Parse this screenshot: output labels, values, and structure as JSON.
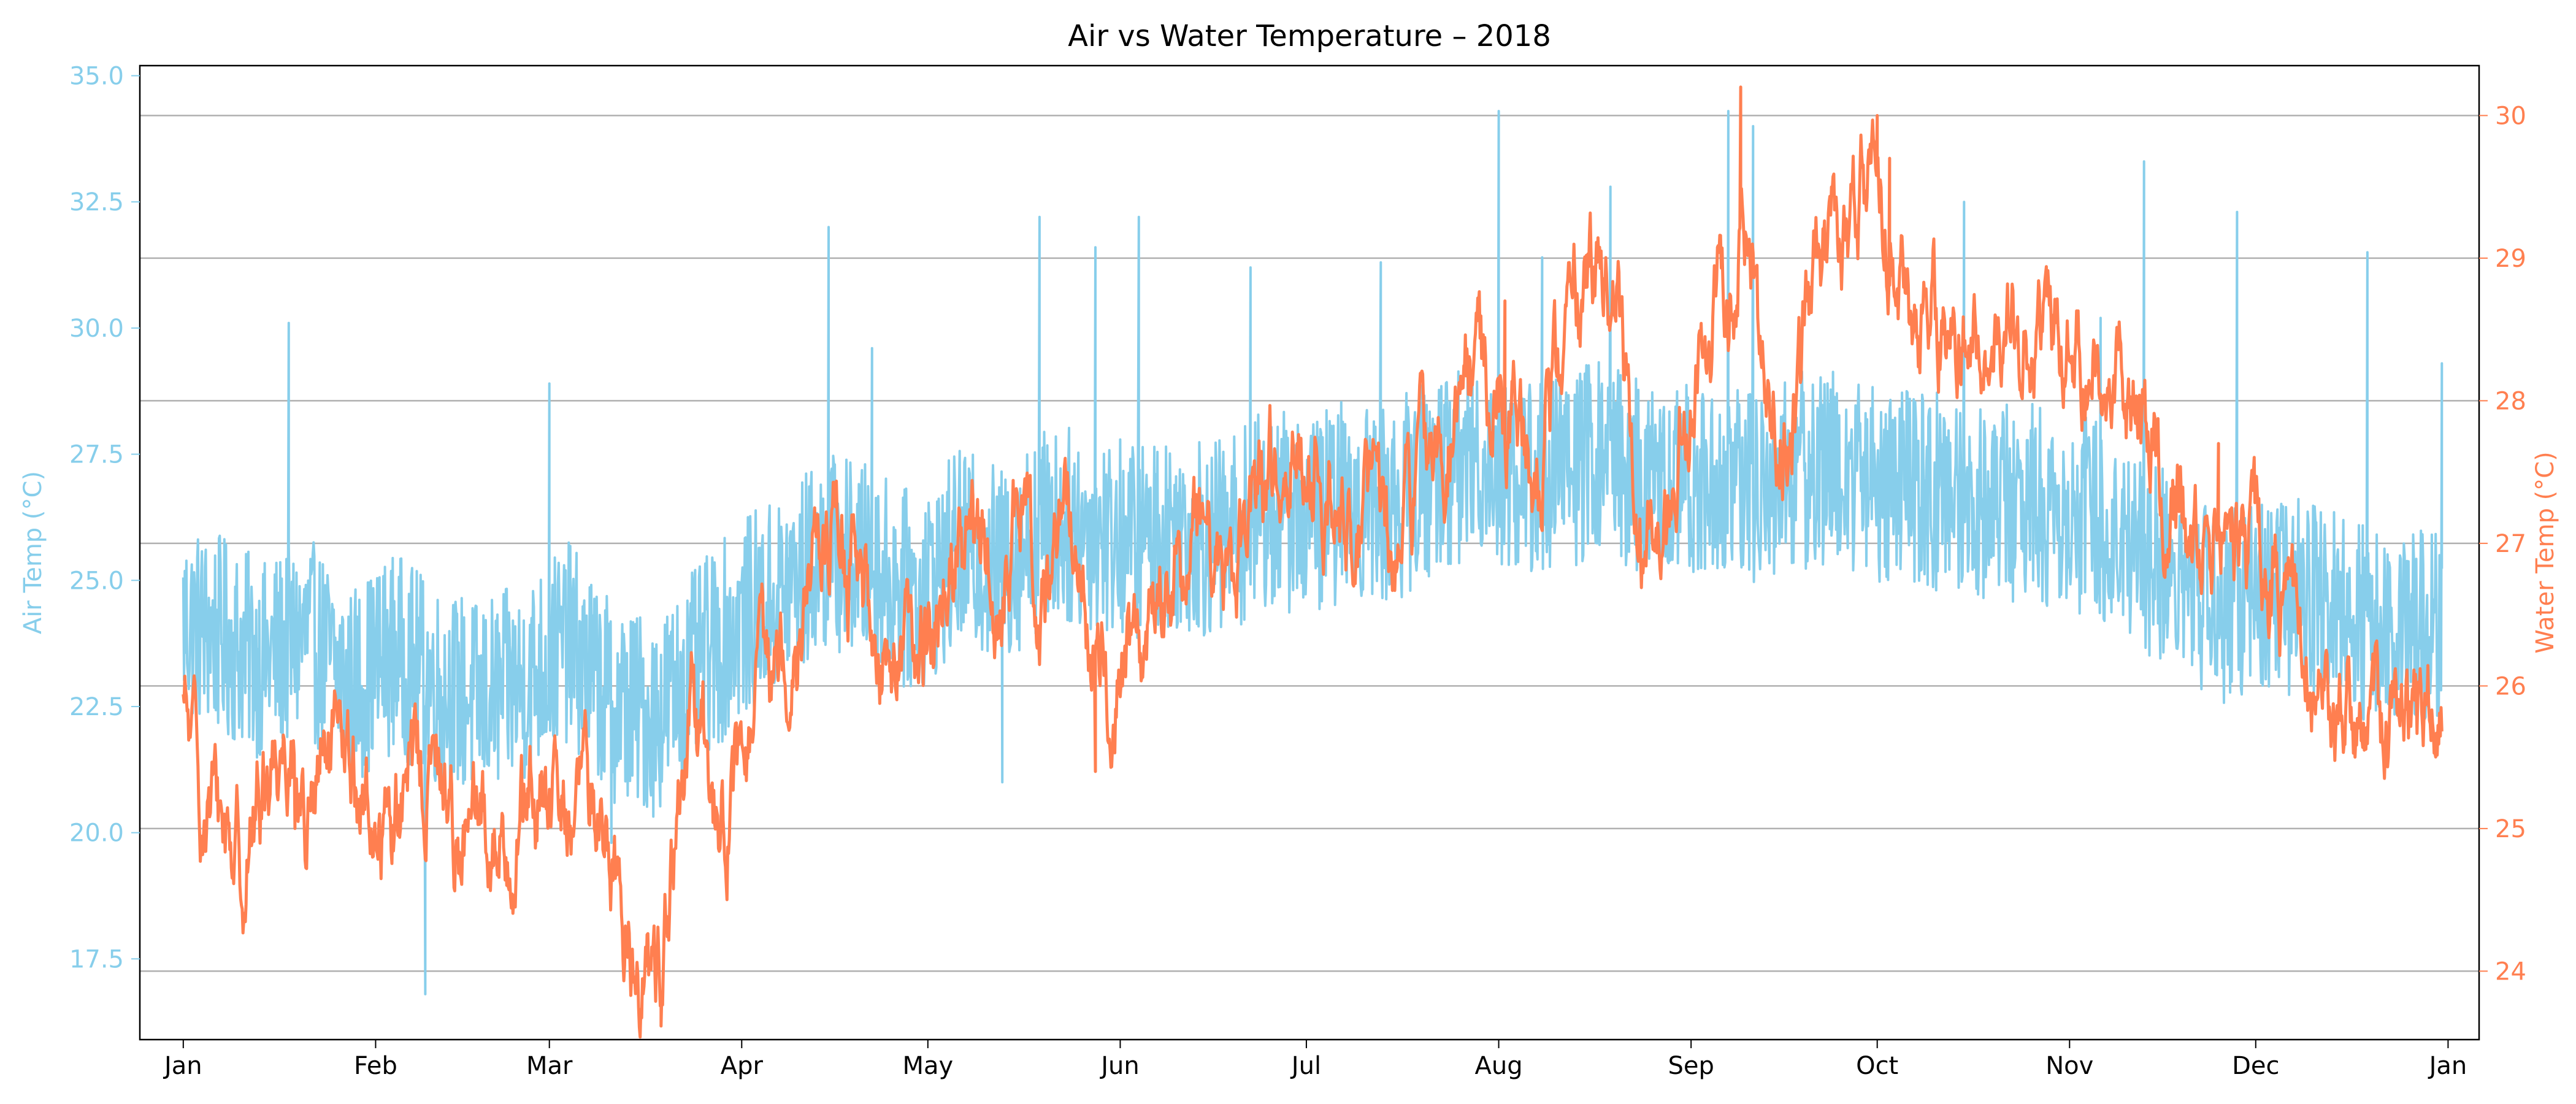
{
  "chart_data": {
    "type": "line",
    "title": "Air vs Water Temperature – 2018",
    "xlabel": "",
    "x_axis": {
      "kind": "date",
      "range": [
        "2017-12-25",
        "2019-01-06"
      ],
      "ticks": [
        {
          "date": "2018-01-01",
          "label": "Jan"
        },
        {
          "date": "2018-02-01",
          "label": "Feb"
        },
        {
          "date": "2018-03-01",
          "label": "Mar"
        },
        {
          "date": "2018-04-01",
          "label": "Apr"
        },
        {
          "date": "2018-05-01",
          "label": "May"
        },
        {
          "date": "2018-06-01",
          "label": "Jun"
        },
        {
          "date": "2018-07-01",
          "label": "Jul"
        },
        {
          "date": "2018-08-01",
          "label": "Aug"
        },
        {
          "date": "2018-09-01",
          "label": "Sep"
        },
        {
          "date": "2018-10-01",
          "label": "Oct"
        },
        {
          "date": "2018-11-01",
          "label": "Nov"
        },
        {
          "date": "2018-12-01",
          "label": "Dec"
        },
        {
          "date": "2019-01-01",
          "label": "Jan"
        }
      ]
    },
    "y_left": {
      "label": "Air Temp (°C)",
      "color": "#87ceeb",
      "range": [
        15.9,
        35.2
      ],
      "ticks": [
        17.5,
        20.0,
        22.5,
        25.0,
        27.5,
        30.0,
        32.5,
        35.0
      ],
      "tick_labels": [
        "17.5",
        "20.0",
        "22.5",
        "25.0",
        "27.5",
        "30.0",
        "32.5",
        "35.0"
      ]
    },
    "y_right": {
      "label": "Water Temp (°C)",
      "color": "#ff7f50",
      "range": [
        23.52,
        30.35
      ],
      "ticks": [
        24,
        25,
        26,
        27,
        28,
        29,
        30
      ],
      "tick_labels": [
        "24",
        "25",
        "26",
        "27",
        "28",
        "29",
        "30"
      ],
      "grid": true
    },
    "series": [
      {
        "axis": "left",
        "color": "#87ceeb",
        "noise_amplitude": 2.0,
        "points": [
          [
            "2018-01-01",
            24.2
          ],
          [
            "2018-01-07",
            23.9
          ],
          [
            "2018-01-14",
            23.4
          ],
          [
            "2018-01-21",
            23.9
          ],
          [
            "2018-01-28",
            22.9
          ],
          [
            "2018-02-04",
            23.6
          ],
          [
            "2018-02-11",
            22.9
          ],
          [
            "2018-02-18",
            22.6
          ],
          [
            "2018-02-25",
            23.0
          ],
          [
            "2018-03-04",
            23.8
          ],
          [
            "2018-03-11",
            22.6
          ],
          [
            "2018-03-18",
            22.3
          ],
          [
            "2018-03-25",
            23.3
          ],
          [
            "2018-04-01",
            24.2
          ],
          [
            "2018-04-08",
            24.8
          ],
          [
            "2018-04-15",
            25.6
          ],
          [
            "2018-04-22",
            25.3
          ],
          [
            "2018-04-29",
            24.7
          ],
          [
            "2018-05-06",
            25.6
          ],
          [
            "2018-05-13",
            25.3
          ],
          [
            "2018-05-20",
            26.1
          ],
          [
            "2018-05-27",
            26.0
          ],
          [
            "2018-06-03",
            25.8
          ],
          [
            "2018-06-10",
            26.0
          ],
          [
            "2018-06-17",
            25.8
          ],
          [
            "2018-06-24",
            26.4
          ],
          [
            "2018-07-01",
            26.3
          ],
          [
            "2018-07-08",
            26.6
          ],
          [
            "2018-07-15",
            26.5
          ],
          [
            "2018-07-22",
            27.2
          ],
          [
            "2018-07-29",
            27.4
          ],
          [
            "2018-08-05",
            27.0
          ],
          [
            "2018-08-12",
            27.2
          ],
          [
            "2018-08-19",
            27.5
          ],
          [
            "2018-08-26",
            26.8
          ],
          [
            "2018-09-02",
            27.0
          ],
          [
            "2018-09-09",
            26.8
          ],
          [
            "2018-09-16",
            27.1
          ],
          [
            "2018-09-23",
            27.3
          ],
          [
            "2018-09-30",
            27.0
          ],
          [
            "2018-10-07",
            26.8
          ],
          [
            "2018-10-14",
            26.7
          ],
          [
            "2018-10-21",
            26.6
          ],
          [
            "2018-10-28",
            26.5
          ],
          [
            "2018-11-04",
            26.3
          ],
          [
            "2018-11-11",
            25.8
          ],
          [
            "2018-11-18",
            25.1
          ],
          [
            "2018-11-25",
            24.5
          ],
          [
            "2018-12-02",
            24.7
          ],
          [
            "2018-12-09",
            24.6
          ],
          [
            "2018-12-16",
            24.3
          ],
          [
            "2018-12-23",
            24.1
          ],
          [
            "2018-12-31",
            24.3
          ]
        ],
        "spikes": [
          [
            "2018-01-18",
            30.1
          ],
          [
            "2018-02-09",
            16.8
          ],
          [
            "2018-03-01",
            28.9
          ],
          [
            "2018-03-11",
            19.8
          ],
          [
            "2018-04-15",
            32.0
          ],
          [
            "2018-04-22",
            29.6
          ],
          [
            "2018-05-13",
            21.0
          ],
          [
            "2018-05-19",
            32.2
          ],
          [
            "2018-05-28",
            31.6
          ],
          [
            "2018-06-04",
            32.2
          ],
          [
            "2018-06-22",
            31.2
          ],
          [
            "2018-07-13",
            31.3
          ],
          [
            "2018-08-01",
            34.3
          ],
          [
            "2018-08-08",
            31.4
          ],
          [
            "2018-08-19",
            32.8
          ],
          [
            "2018-09-07",
            34.3
          ],
          [
            "2018-09-11",
            34.0
          ],
          [
            "2018-10-15",
            32.5
          ],
          [
            "2018-11-06",
            30.2
          ],
          [
            "2018-11-13",
            33.3
          ],
          [
            "2018-11-28",
            32.3
          ],
          [
            "2018-12-19",
            31.5
          ],
          [
            "2018-12-31",
            29.3
          ]
        ]
      },
      {
        "axis": "right",
        "color": "#ff7f50",
        "noise_amplitude": 0.25,
        "points": [
          [
            "2018-01-01",
            25.8
          ],
          [
            "2018-01-04",
            25.2
          ],
          [
            "2018-01-08",
            25.0
          ],
          [
            "2018-01-11",
            24.8
          ],
          [
            "2018-01-15",
            25.5
          ],
          [
            "2018-01-18",
            25.7
          ],
          [
            "2018-01-21",
            25.0
          ],
          [
            "2018-01-24",
            25.4
          ],
          [
            "2018-01-28",
            25.4
          ],
          [
            "2018-02-01",
            25.0
          ],
          [
            "2018-02-04",
            25.1
          ],
          [
            "2018-02-08",
            25.4
          ],
          [
            "2018-02-11",
            25.4
          ],
          [
            "2018-02-15",
            24.9
          ],
          [
            "2018-02-18",
            25.0
          ],
          [
            "2018-02-22",
            24.9
          ],
          [
            "2018-02-25",
            25.2
          ],
          [
            "2018-03-01",
            25.1
          ],
          [
            "2018-03-04",
            25.1
          ],
          [
            "2018-03-08",
            25.3
          ],
          [
            "2018-03-11",
            24.8
          ],
          [
            "2018-03-14",
            24.2
          ],
          [
            "2018-03-18",
            23.9
          ],
          [
            "2018-03-21",
            24.7
          ],
          [
            "2018-03-24",
            25.7
          ],
          [
            "2018-03-28",
            25.1
          ],
          [
            "2018-04-01",
            25.3
          ],
          [
            "2018-04-05",
            26.1
          ],
          [
            "2018-04-08",
            26.3
          ],
          [
            "2018-04-12",
            26.9
          ],
          [
            "2018-04-15",
            27.1
          ],
          [
            "2018-04-19",
            26.7
          ],
          [
            "2018-04-22",
            26.4
          ],
          [
            "2018-04-26",
            26.3
          ],
          [
            "2018-04-30",
            26.2
          ],
          [
            "2018-05-04",
            26.9
          ],
          [
            "2018-05-08",
            27.0
          ],
          [
            "2018-05-12",
            26.5
          ],
          [
            "2018-05-16",
            27.1
          ],
          [
            "2018-05-20",
            26.7
          ],
          [
            "2018-05-24",
            27.4
          ],
          [
            "2018-05-28",
            26.0
          ],
          [
            "2018-06-01",
            26.1
          ],
          [
            "2018-06-05",
            26.5
          ],
          [
            "2018-06-09",
            26.6
          ],
          [
            "2018-06-13",
            27.1
          ],
          [
            "2018-06-17",
            27.1
          ],
          [
            "2018-06-21",
            26.8
          ],
          [
            "2018-06-25",
            27.5
          ],
          [
            "2018-06-29",
            27.8
          ],
          [
            "2018-07-03",
            27.6
          ],
          [
            "2018-07-07",
            27.1
          ],
          [
            "2018-07-11",
            27.2
          ],
          [
            "2018-07-15",
            27.0
          ],
          [
            "2018-07-19",
            27.6
          ],
          [
            "2018-07-23",
            27.8
          ],
          [
            "2018-07-27",
            28.2
          ],
          [
            "2018-07-31",
            28.1
          ],
          [
            "2018-08-04",
            27.9
          ],
          [
            "2018-08-08",
            27.5
          ],
          [
            "2018-08-12",
            28.7
          ],
          [
            "2018-08-16",
            28.9
          ],
          [
            "2018-08-20",
            28.6
          ],
          [
            "2018-08-24",
            26.9
          ],
          [
            "2018-08-28",
            27.3
          ],
          [
            "2018-09-01",
            28.3
          ],
          [
            "2018-09-05",
            28.6
          ],
          [
            "2018-09-09",
            29.2
          ],
          [
            "2018-09-13",
            28.1
          ],
          [
            "2018-09-17",
            27.9
          ],
          [
            "2018-09-21",
            28.9
          ],
          [
            "2018-09-25",
            29.2
          ],
          [
            "2018-09-29",
            29.5
          ],
          [
            "2018-10-03",
            29.2
          ],
          [
            "2018-10-07",
            28.6
          ],
          [
            "2018-10-11",
            28.6
          ],
          [
            "2018-10-15",
            28.5
          ],
          [
            "2018-10-19",
            28.5
          ],
          [
            "2018-10-23",
            28.4
          ],
          [
            "2018-10-27",
            28.5
          ],
          [
            "2018-10-31",
            28.4
          ],
          [
            "2018-11-04",
            28.3
          ],
          [
            "2018-11-08",
            28.2
          ],
          [
            "2018-11-12",
            27.9
          ],
          [
            "2018-11-16",
            27.4
          ],
          [
            "2018-11-20",
            27.2
          ],
          [
            "2018-11-24",
            27.1
          ],
          [
            "2018-11-28",
            26.9
          ],
          [
            "2018-12-02",
            26.9
          ],
          [
            "2018-12-06",
            26.6
          ],
          [
            "2018-12-10",
            26.2
          ],
          [
            "2018-12-14",
            25.8
          ],
          [
            "2018-12-18",
            25.6
          ],
          [
            "2018-12-22",
            25.7
          ],
          [
            "2018-12-26",
            25.8
          ],
          [
            "2018-12-31",
            25.8
          ]
        ],
        "spikes": [
          [
            "2018-01-19",
            25.0
          ],
          [
            "2018-03-19",
            23.8
          ],
          [
            "2018-05-28",
            25.4
          ],
          [
            "2018-08-02",
            28.7
          ],
          [
            "2018-09-09",
            30.2
          ],
          [
            "2018-10-01",
            30.0
          ],
          [
            "2018-10-03",
            29.7
          ],
          [
            "2018-11-25",
            27.7
          ]
        ]
      }
    ]
  }
}
